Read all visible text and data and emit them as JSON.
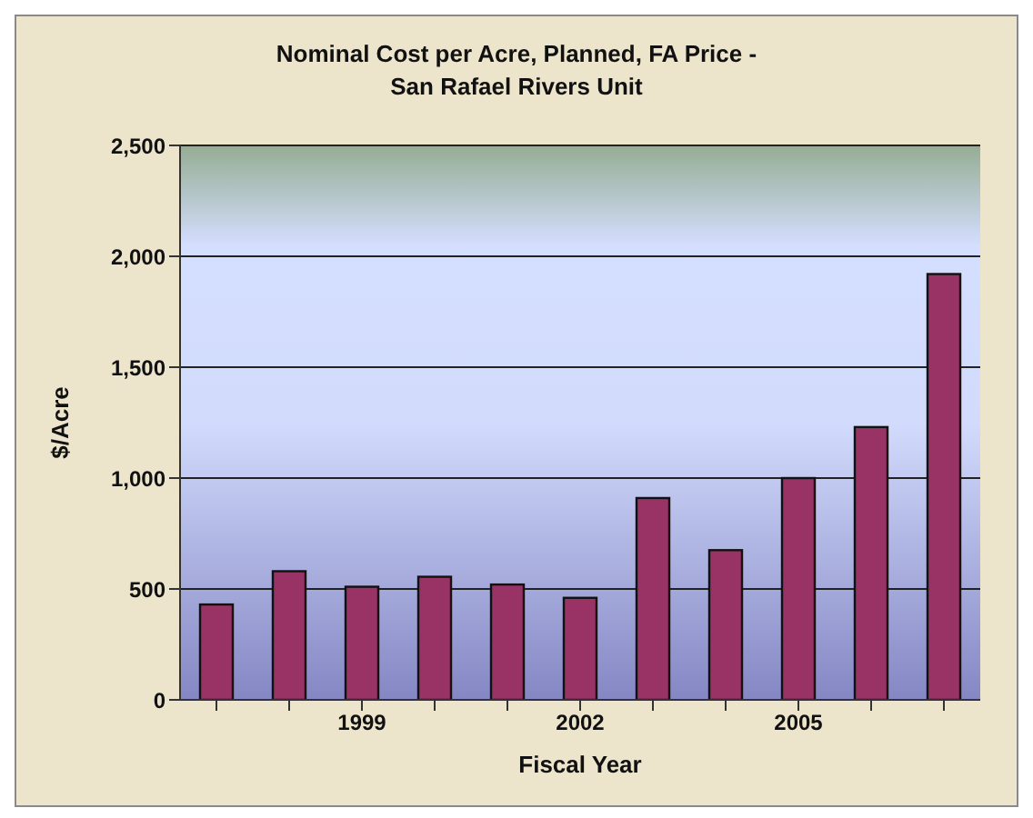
{
  "chart_data": {
    "type": "bar",
    "title": "Nominal Cost per Acre, Planned, FA Price - San Rafael Rivers Unit",
    "xlabel": "Fiscal Year",
    "ylabel": "$/Acre",
    "categories": [
      null,
      null,
      "1999",
      null,
      null,
      "2002",
      null,
      null,
      "2005",
      null,
      null
    ],
    "values": [
      430,
      580,
      510,
      555,
      520,
      460,
      910,
      675,
      1000,
      1230,
      1920
    ],
    "color": "#993366",
    "ylim": [
      0,
      2500
    ],
    "yticks": [
      {
        "value": 0,
        "label": "0"
      },
      {
        "value": 500,
        "label": "500"
      },
      {
        "value": 1000,
        "label": "1,000"
      },
      {
        "value": 1500,
        "label": "1,500"
      },
      {
        "value": 2000,
        "label": "2,000"
      },
      {
        "value": 2500,
        "label": "2,500"
      }
    ],
    "grid": "y",
    "legend": false
  }
}
